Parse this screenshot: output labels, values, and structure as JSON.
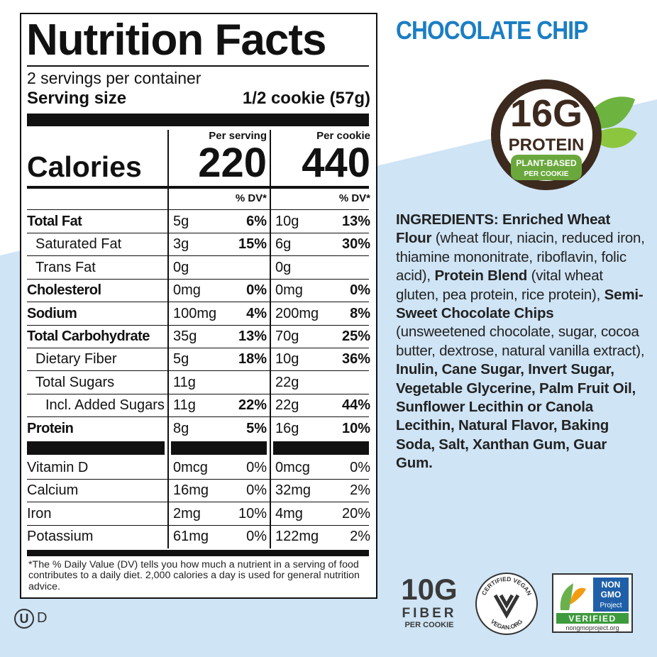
{
  "nutrition": {
    "title": "Nutrition Facts",
    "servings": "2 servings per container",
    "serving_size_label": "Serving size",
    "serving_size": "1/2 cookie (57g)",
    "calories_label": "Calories",
    "columns": [
      {
        "header": "Per serving",
        "calories": "220",
        "dv_header": "% DV*"
      },
      {
        "header": "Per cookie",
        "calories": "440",
        "dv_header": "% DV*"
      }
    ],
    "rows": [
      {
        "name": "Total Fat",
        "level": 0,
        "bold": true,
        "amounts": [
          "5g",
          "10g"
        ],
        "dv": [
          "6%",
          "13%"
        ]
      },
      {
        "name": "Saturated Fat",
        "level": 1,
        "bold": false,
        "amounts": [
          "3g",
          "6g"
        ],
        "dv": [
          "15%",
          "30%"
        ]
      },
      {
        "name": "Trans Fat",
        "level": 1,
        "bold": false,
        "amounts": [
          "0g",
          "0g"
        ],
        "dv": [
          null,
          null
        ]
      },
      {
        "name": "Cholesterol",
        "level": 0,
        "bold": true,
        "amounts": [
          "0mg",
          "0mg"
        ],
        "dv": [
          "0%",
          "0%"
        ]
      },
      {
        "name": "Sodium",
        "level": 0,
        "bold": true,
        "amounts": [
          "100mg",
          "200mg"
        ],
        "dv": [
          "4%",
          "8%"
        ]
      },
      {
        "name": "Total Carbohydrate",
        "level": 0,
        "bold": true,
        "amounts": [
          "35g",
          "70g"
        ],
        "dv": [
          "13%",
          "25%"
        ]
      },
      {
        "name": "Dietary Fiber",
        "level": 1,
        "bold": false,
        "amounts": [
          "5g",
          "10g"
        ],
        "dv": [
          "18%",
          "36%"
        ]
      },
      {
        "name": "Total Sugars",
        "level": 1,
        "bold": false,
        "amounts": [
          "11g",
          "22g"
        ],
        "dv": [
          null,
          null
        ]
      },
      {
        "name": "Incl. Added Sugars",
        "level": 2,
        "bold": false,
        "amounts": [
          "11g",
          "22g"
        ],
        "dv": [
          "22%",
          "44%"
        ]
      },
      {
        "name": "Protein",
        "level": 0,
        "bold": true,
        "amounts": [
          "8g",
          "16g"
        ],
        "dv": [
          "5%",
          "10%"
        ]
      }
    ],
    "vitamins": [
      {
        "name": "Vitamin D",
        "amounts": [
          "0mcg",
          "0mcg"
        ],
        "dv": [
          "0%",
          "0%"
        ]
      },
      {
        "name": "Calcium",
        "amounts": [
          "16mg",
          "32mg"
        ],
        "dv": [
          "0%",
          "2%"
        ]
      },
      {
        "name": "Iron",
        "amounts": [
          "2mg",
          "4mg"
        ],
        "dv": [
          "10%",
          "20%"
        ]
      },
      {
        "name": "Potassium",
        "amounts": [
          "61mg",
          "122mg"
        ],
        "dv": [
          "0%",
          "2%"
        ]
      }
    ],
    "footnote": "*The % Daily Value (DV) tells you how much a nutrient in a serving of food contributes to a daily diet. 2,000 calories a day is used for general nutrition advice."
  },
  "kosher": {
    "symbol": "U",
    "suffix": "D"
  },
  "flavor": "CHOCOLATE CHIP",
  "protein_badge": {
    "amount": "16G",
    "label": "PROTEIN",
    "line1": "PLANT-BASED",
    "line2": "PER COOKIE"
  },
  "ingredients": [
    {
      "text": "INGREDIENTS: Enriched Wheat Flour",
      "bold": true
    },
    {
      "text": " (wheat flour, niacin, reduced iron, thiamine mononitrate, riboflavin, folic acid), ",
      "bold": false
    },
    {
      "text": "Protein Blend",
      "bold": true
    },
    {
      "text": " (vital wheat gluten, pea protein, rice protein), ",
      "bold": false
    },
    {
      "text": "Semi-Sweet Chocolate Chips",
      "bold": true
    },
    {
      "text": " (unsweetened chocolate, sugar, cocoa butter, dextrose, natural vanilla extract), ",
      "bold": false
    },
    {
      "text": "Inulin, Cane Sugar, Invert Sugar, Vegetable Glycerine, Palm Fruit Oil, Sunflower Lecithin or Canola Lecithin, Natural Flavor, Baking Soda, Salt, Xanthan Gum, Guar Gum.",
      "bold": true
    }
  ],
  "fiber_badge": {
    "amount": "10G",
    "label": "FIBER",
    "sub": "PER COOKIE"
  },
  "vegan_badge": {
    "top": "CERTIFIED VEGAN",
    "bottom": "VEGAN.ORG"
  },
  "nongmo_badge": {
    "line1": "NON",
    "line2": "GMO",
    "line3": "Project",
    "verified": "VERIFIED",
    "url": "nongmoproject.org"
  }
}
